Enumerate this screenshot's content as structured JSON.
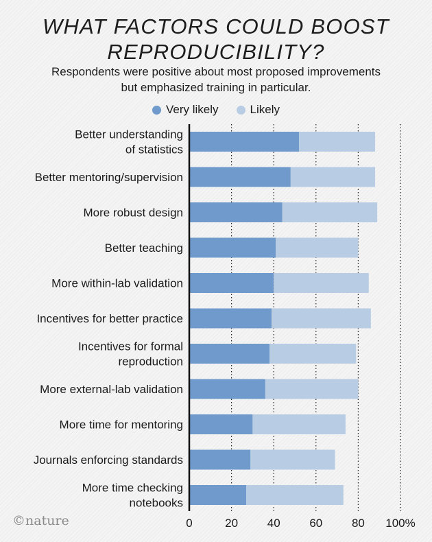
{
  "chart_title": "WHAT FACTORS COULD BOOST REPRODUCIBILITY?",
  "subtitle": "Respondents were positive about most proposed improvements but emphasized training in particular.",
  "brand": "©nature",
  "colors": {
    "very_likely": "#6f9acb",
    "likely": "#b8cde4"
  },
  "chart_data": {
    "type": "bar",
    "orientation": "horizontal",
    "stacked": true,
    "categories": [
      "Better understanding of statistics",
      "Better mentoring/supervision",
      "More robust design",
      "Better teaching",
      "More within-lab validation",
      "Incentives for better practice",
      "Incentives for formal reproduction",
      "More external-lab validation",
      "More time for mentoring",
      "Journals enforcing standards",
      "More time checking notebooks"
    ],
    "series": [
      {
        "name": "Very likely",
        "values": [
          52,
          48,
          44,
          41,
          40,
          39,
          38,
          36,
          30,
          29,
          27
        ]
      },
      {
        "name": "Likely",
        "values": [
          36,
          40,
          45,
          39,
          45,
          47,
          41,
          44,
          44,
          40,
          46
        ]
      }
    ],
    "xlim": [
      0,
      100
    ],
    "xticks": [
      "0",
      "20",
      "40",
      "60",
      "80",
      "100%"
    ],
    "xlabel": "",
    "ylabel": "",
    "grid": "vertical dotted",
    "legend_position": "top-center"
  }
}
